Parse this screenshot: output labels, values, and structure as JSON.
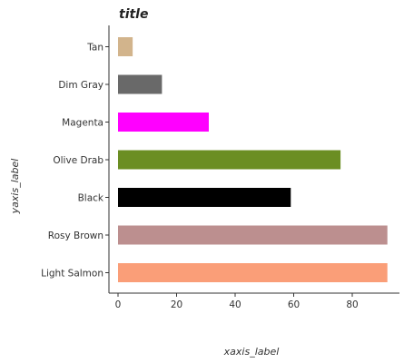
{
  "chart_data": {
    "type": "bar",
    "orientation": "horizontal",
    "title": "title",
    "xlabel": "xaxis_label",
    "ylabel": "yaxis_label",
    "categories": [
      "Light Salmon",
      "Rosy Brown",
      "Black",
      "Olive Drab",
      "Magenta",
      "Dim Gray",
      "Tan"
    ],
    "values": [
      92,
      92,
      59,
      76,
      31,
      15,
      5
    ],
    "colors": [
      "#fa9e78",
      "#bc8f8f",
      "#000000",
      "#6b8e23",
      "#ff00ff",
      "#696969",
      "#d2b48c"
    ],
    "xlim": [
      0,
      92
    ],
    "xticks": [
      0,
      20,
      40,
      60,
      80
    ],
    "grid": false,
    "legend": "none"
  }
}
